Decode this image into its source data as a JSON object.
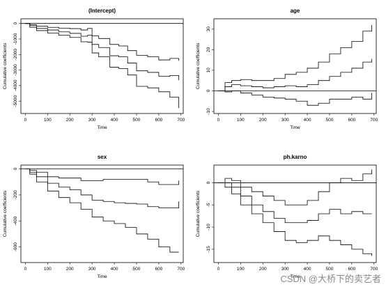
{
  "figure": {
    "watermark": "CSDN @大桥下的卖艺者"
  },
  "chart_data": [
    {
      "type": "line",
      "title": "(Intercept)",
      "xlabel": "Time",
      "ylabel": "Cumulative coefficients",
      "xlim": [
        -20,
        710
      ],
      "ylim": [
        -5800,
        300
      ],
      "xticks": [
        0,
        100,
        200,
        300,
        400,
        500,
        600,
        700
      ],
      "yticks": [
        0,
        -1000,
        -2000,
        -3000,
        -4000,
        -5000
      ],
      "hline": 0,
      "series": [
        {
          "x": [
            0,
            20,
            50,
            100,
            150,
            200,
            250,
            280,
            300,
            330,
            380,
            420,
            460,
            500,
            550,
            600,
            650,
            690
          ],
          "values": [
            0,
            -150,
            -320,
            -420,
            -540,
            -640,
            -820,
            -760,
            -1350,
            -1550,
            -2080,
            -2150,
            -2550,
            -3050,
            -3150,
            -3400,
            -3350,
            -3650
          ]
        },
        {
          "x": [
            0,
            20,
            50,
            100,
            150,
            200,
            250,
            280,
            300,
            330,
            380,
            420,
            460,
            500,
            550,
            600,
            650,
            690
          ],
          "values": [
            0,
            -80,
            -180,
            -250,
            -300,
            -330,
            -420,
            -320,
            -800,
            -970,
            -1350,
            -1450,
            -1750,
            -2050,
            -2150,
            -2350,
            -2250,
            -2400
          ]
        },
        {
          "x": [
            0,
            20,
            50,
            100,
            150,
            200,
            250,
            280,
            300,
            330,
            380,
            420,
            460,
            500,
            550,
            600,
            650,
            690
          ],
          "values": [
            0,
            -250,
            -460,
            -620,
            -760,
            -900,
            -1180,
            -1200,
            -1900,
            -2150,
            -2820,
            -2900,
            -3320,
            -4050,
            -4150,
            -4400,
            -4750,
            -5450
          ]
        }
      ]
    },
    {
      "type": "line",
      "title": "age",
      "xlabel": "Time",
      "ylabel": "Cumulative coefficients",
      "xlim": [
        -20,
        710
      ],
      "ylim": [
        -11,
        35
      ],
      "xticks": [
        0,
        100,
        200,
        300,
        400,
        500,
        600,
        700
      ],
      "yticks": [
        30,
        20,
        10,
        0,
        -10
      ],
      "hline": 0,
      "series": [
        {
          "x": [
            0,
            30,
            60,
            100,
            150,
            200,
            250,
            300,
            350,
            400,
            450,
            500,
            550,
            600,
            650,
            690
          ],
          "values": [
            0,
            2,
            3,
            2.5,
            2,
            1.5,
            2,
            2.5,
            2,
            3,
            5,
            7,
            9,
            11,
            14,
            15.5
          ]
        },
        {
          "x": [
            0,
            30,
            60,
            100,
            150,
            200,
            250,
            300,
            350,
            400,
            450,
            500,
            550,
            600,
            650,
            690
          ],
          "values": [
            0,
            4,
            5,
            5.5,
            5,
            5,
            6,
            8,
            9,
            11,
            14,
            18,
            21,
            24,
            29,
            32
          ]
        },
        {
          "x": [
            0,
            30,
            60,
            100,
            150,
            200,
            250,
            300,
            350,
            400,
            450,
            500,
            550,
            600,
            650,
            690
          ],
          "values": [
            0,
            -0.5,
            0,
            -1,
            -2,
            -3,
            -3.5,
            -4,
            -5,
            -7,
            -6,
            -4,
            -4,
            -3,
            -4,
            -1
          ]
        }
      ]
    },
    {
      "type": "line",
      "title": "sex",
      "xlabel": "Time",
      "ylabel": "Cumulative coefficients",
      "xlim": [
        -20,
        710
      ],
      "ylim": [
        -720,
        30
      ],
      "xticks": [
        0,
        100,
        200,
        300,
        400,
        500,
        600,
        700
      ],
      "yticks": [
        0,
        -200,
        -400,
        -600
      ],
      "hline": 0,
      "series": [
        {
          "x": [
            0,
            20,
            50,
            100,
            150,
            200,
            250,
            300,
            350,
            400,
            450,
            500,
            550,
            600,
            650,
            690
          ],
          "values": [
            0,
            -25,
            -60,
            -110,
            -140,
            -160,
            -200,
            -240,
            -250,
            -260,
            -265,
            -270,
            -290,
            -300,
            -300,
            -250
          ]
        },
        {
          "x": [
            0,
            20,
            50,
            100,
            150,
            200,
            250,
            300,
            350,
            400,
            450,
            500,
            550,
            600,
            650,
            690
          ],
          "values": [
            0,
            -10,
            -25,
            -60,
            -70,
            -70,
            -90,
            -90,
            -80,
            -80,
            -80,
            -80,
            -100,
            -120,
            -120,
            -90
          ]
        },
        {
          "x": [
            0,
            20,
            50,
            100,
            150,
            200,
            250,
            300,
            350,
            400,
            450,
            500,
            550,
            600,
            650,
            690
          ],
          "values": [
            0,
            -40,
            -100,
            -170,
            -220,
            -260,
            -310,
            -370,
            -400,
            -420,
            -450,
            -500,
            -540,
            -600,
            -640,
            -640
          ]
        }
      ]
    },
    {
      "type": "line",
      "title": "ph.karno",
      "xlabel": "Time",
      "ylabel": "Cumulative coefficients",
      "xlim": [
        -20,
        710
      ],
      "ylim": [
        -18,
        4
      ],
      "xticks": [
        0,
        100,
        200,
        300,
        400,
        500,
        600,
        700
      ],
      "yticks": [
        0,
        -5,
        -10,
        -15
      ],
      "hline": 0,
      "series": [
        {
          "x": [
            0,
            30,
            60,
            100,
            150,
            200,
            250,
            300,
            350,
            400,
            450,
            500,
            550,
            600,
            650,
            690
          ],
          "values": [
            0,
            0,
            -1,
            -3,
            -5,
            -6.5,
            -8,
            -9,
            -9,
            -8.5,
            -7,
            -6,
            -7,
            -6.5,
            -7,
            -7
          ]
        },
        {
          "x": [
            0,
            30,
            60,
            100,
            150,
            200,
            250,
            300,
            350,
            400,
            450,
            500,
            550,
            600,
            650,
            690
          ],
          "values": [
            0,
            1,
            0.5,
            -1,
            -2,
            -3,
            -4,
            -5,
            -5,
            -4,
            -2,
            0,
            1,
            0.5,
            2,
            3
          ]
        },
        {
          "x": [
            0,
            30,
            60,
            100,
            150,
            200,
            250,
            300,
            350,
            400,
            450,
            500,
            550,
            600,
            650,
            690
          ],
          "values": [
            0,
            -1,
            -2.5,
            -5,
            -7,
            -9,
            -11,
            -13,
            -13.5,
            -13,
            -12,
            -13,
            -14,
            -15,
            -16,
            -16.5
          ]
        }
      ]
    }
  ]
}
